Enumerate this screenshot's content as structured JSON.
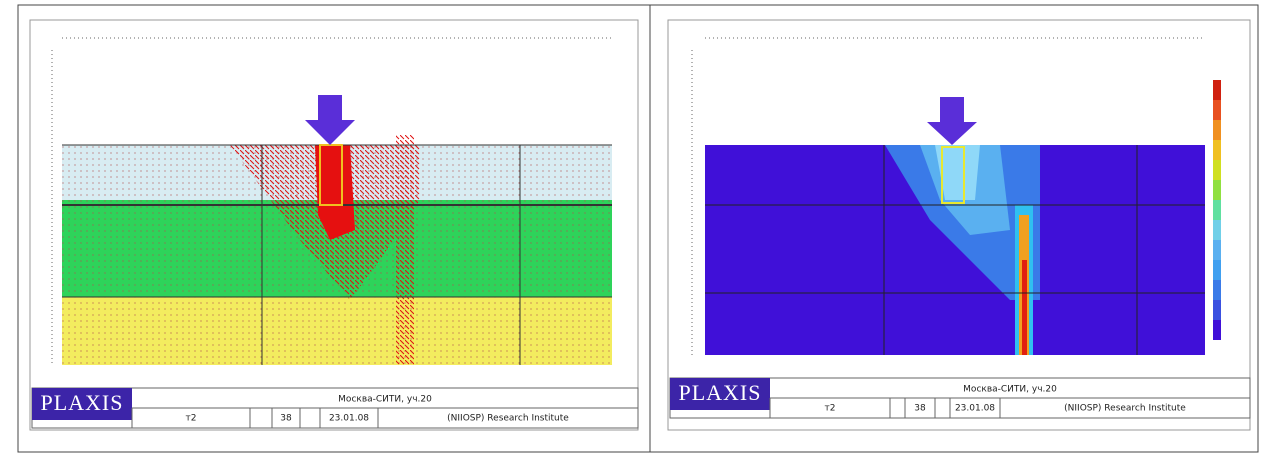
{
  "panels": [
    {
      "logo": "PLAXIS",
      "project": "Москва-СИТИ, уч.20",
      "step": "т2",
      "number": "38",
      "date": "23.01.08",
      "organization": "(NIIOSP) Research Institute"
    },
    {
      "logo": "PLAXIS",
      "project": "Москва-СИТИ, уч.20",
      "step": "т2",
      "number": "38",
      "date": "23.01.08",
      "organization": "(NIIOSP) Research Institute"
    }
  ]
}
